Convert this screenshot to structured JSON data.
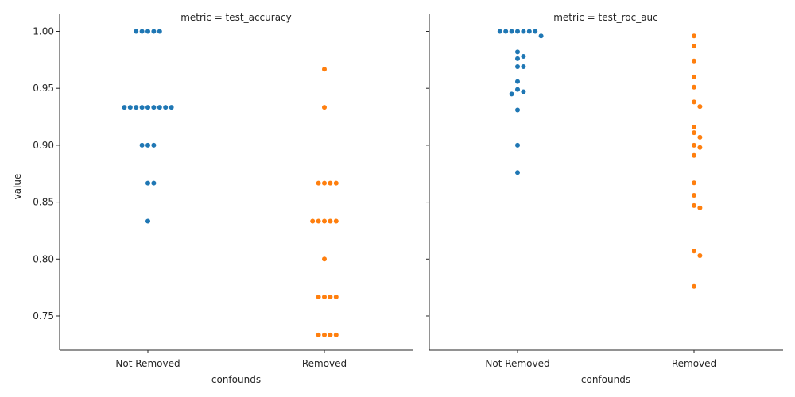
{
  "chart_data": [
    {
      "type": "scatter",
      "title": "metric = test_accuracy",
      "xlabel": "confounds",
      "ylabel": "value",
      "categories": [
        "Not Removed",
        "Removed"
      ],
      "ylim": [
        0.72,
        1.015
      ],
      "yticks": [
        0.75,
        0.8,
        0.85,
        0.9,
        0.95,
        1.0
      ],
      "ytick_labels": [
        "0.75",
        "0.80",
        "0.85",
        "0.90",
        "0.95",
        "1.00"
      ],
      "series": [
        {
          "category": "Not Removed",
          "color": "#1f77b4",
          "values": [
            1.0,
            1.0,
            1.0,
            1.0,
            1.0,
            0.9333,
            0.9333,
            0.9333,
            0.9333,
            0.9333,
            0.9333,
            0.9333,
            0.9333,
            0.9333,
            0.9,
            0.9,
            0.9,
            0.8667,
            0.8667,
            0.8333
          ]
        },
        {
          "category": "Removed",
          "color": "#ff7f0e",
          "values": [
            0.9667,
            0.9333,
            0.8667,
            0.8667,
            0.8667,
            0.8667,
            0.8333,
            0.8333,
            0.8333,
            0.8333,
            0.8333,
            0.8,
            0.7667,
            0.7667,
            0.7667,
            0.7667,
            0.7333,
            0.7333,
            0.7333,
            0.7333
          ]
        }
      ]
    },
    {
      "type": "scatter",
      "title": "metric = test_roc_auc",
      "xlabel": "confounds",
      "ylabel": "",
      "categories": [
        "Not Removed",
        "Removed"
      ],
      "ylim": [
        0.72,
        1.015
      ],
      "yticks": [
        0.75,
        0.8,
        0.85,
        0.9,
        0.95,
        1.0
      ],
      "series": [
        {
          "category": "Not Removed",
          "color": "#1f77b4",
          "values": [
            1.0,
            1.0,
            1.0,
            1.0,
            1.0,
            1.0,
            1.0,
            0.996,
            0.982,
            0.978,
            0.976,
            0.969,
            0.969,
            0.956,
            0.949,
            0.947,
            0.945,
            0.931,
            0.9,
            0.876
          ]
        },
        {
          "category": "Removed",
          "color": "#ff7f0e",
          "values": [
            0.996,
            0.987,
            0.974,
            0.96,
            0.951,
            0.938,
            0.934,
            0.916,
            0.911,
            0.907,
            0.9,
            0.898,
            0.891,
            0.867,
            0.856,
            0.847,
            0.845,
            0.807,
            0.803,
            0.776
          ]
        }
      ]
    }
  ]
}
